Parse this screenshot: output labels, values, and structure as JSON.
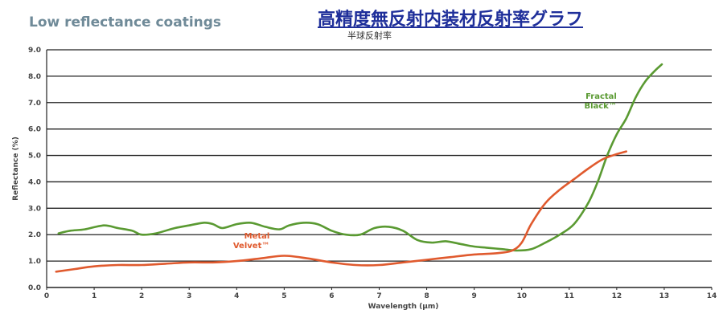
{
  "header": {
    "english_title": "Low reflectance coatings",
    "japanese_title": "高精度無反射内装材反射率グラフ",
    "japanese_subtitle": "半球反射率"
  },
  "chart_data": {
    "type": "line",
    "title": "Low reflectance coatings",
    "xlabel": "Wavelength (µm)",
    "ylabel": "Reflectance (%)",
    "xlim": [
      0,
      14
    ],
    "ylim": [
      0,
      9
    ],
    "x_ticks": [
      "0",
      "1",
      "2",
      "3",
      "4",
      "5",
      "6",
      "7",
      "8",
      "9",
      "10",
      "11",
      "12",
      "13",
      "14"
    ],
    "y_ticks": [
      "0.0",
      "1.0",
      "2.0",
      "3.0",
      "4.0",
      "5.0",
      "6.0",
      "7.0",
      "8.0",
      "9.0"
    ],
    "grid": "horizontal",
    "colors": {
      "fractal_black": "#5a9a32",
      "metal_velvet": "#e05a2e",
      "grid": "#222222",
      "axis_text": "#444444"
    },
    "series": [
      {
        "name": "Fractal Black™",
        "label_lines": [
          "Fractal",
          "Black™"
        ],
        "x": [
          0.25,
          0.5,
          0.8,
          1.2,
          1.5,
          1.8,
          2.0,
          2.3,
          2.7,
          3.0,
          3.3,
          3.5,
          3.7,
          4.0,
          4.3,
          4.6,
          4.9,
          5.1,
          5.4,
          5.7,
          6.0,
          6.3,
          6.6,
          6.9,
          7.2,
          7.5,
          7.8,
          8.1,
          8.4,
          8.7,
          9.0,
          9.3,
          9.6,
          9.9,
          10.2,
          10.5,
          10.8,
          11.1,
          11.4,
          11.6,
          11.8,
          12.0,
          12.2,
          12.4,
          12.6,
          12.8,
          12.95
        ],
        "y": [
          2.05,
          2.15,
          2.2,
          2.35,
          2.25,
          2.15,
          2.0,
          2.05,
          2.25,
          2.35,
          2.45,
          2.4,
          2.25,
          2.4,
          2.45,
          2.3,
          2.2,
          2.35,
          2.45,
          2.4,
          2.15,
          2.0,
          2.0,
          2.25,
          2.3,
          2.15,
          1.8,
          1.7,
          1.75,
          1.65,
          1.55,
          1.5,
          1.45,
          1.4,
          1.45,
          1.7,
          2.0,
          2.4,
          3.2,
          4.0,
          5.0,
          5.8,
          6.4,
          7.2,
          7.8,
          8.2,
          8.45
        ]
      },
      {
        "name": "Metal Velvet™",
        "label_lines": [
          "Metal",
          "Velvet™"
        ],
        "x": [
          0.2,
          0.6,
          1.0,
          1.5,
          2.0,
          2.5,
          3.0,
          3.5,
          4.0,
          4.5,
          5.0,
          5.5,
          6.0,
          6.5,
          7.0,
          7.5,
          8.0,
          8.5,
          9.0,
          9.5,
          9.8,
          10.0,
          10.2,
          10.5,
          10.8,
          11.1,
          11.4,
          11.7,
          12.0,
          12.2
        ],
        "y": [
          0.6,
          0.7,
          0.8,
          0.85,
          0.85,
          0.9,
          0.95,
          0.95,
          1.0,
          1.1,
          1.2,
          1.1,
          0.95,
          0.85,
          0.85,
          0.95,
          1.05,
          1.15,
          1.25,
          1.3,
          1.4,
          1.7,
          2.4,
          3.2,
          3.7,
          4.1,
          4.5,
          4.85,
          5.05,
          5.15
        ]
      }
    ]
  }
}
